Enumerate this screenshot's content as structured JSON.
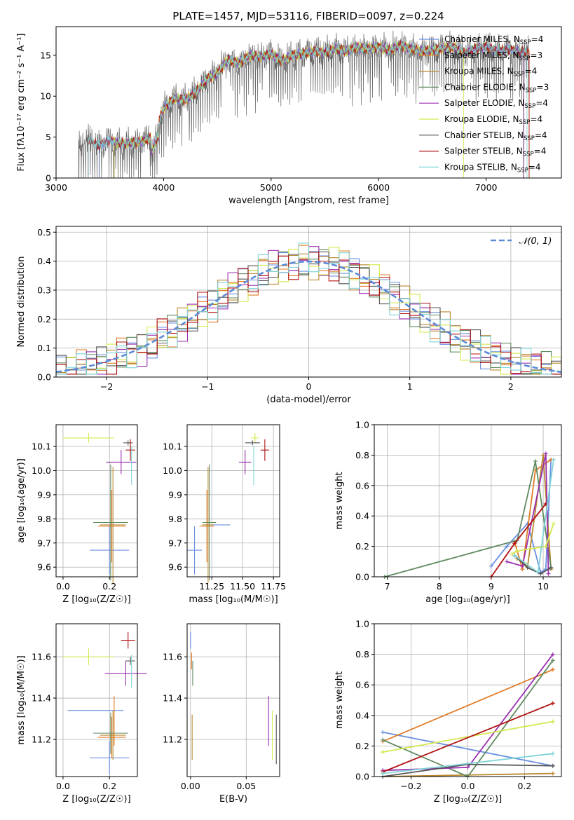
{
  "title": "PLATE=1457, MJD=53116, FIBERID=0097, z=0.224",
  "models": [
    {
      "name": "Chabrier MILES, N",
      "sub": "SSP",
      "n": "=4",
      "color": "#6a8fe0"
    },
    {
      "name": "Salpeter MILES, N",
      "sub": "SSP",
      "n": "=3",
      "color": "#e07b27"
    },
    {
      "name": "Kroupa MILES, N",
      "sub": "SSP",
      "n": "=4",
      "color": "#b8882f"
    },
    {
      "name": "Chabrier ELODIE, N",
      "sub": "SSP",
      "n": "=3",
      "color": "#5f8a5f"
    },
    {
      "name": "Salpeter ELODIE, N",
      "sub": "SSP",
      "n": "=4",
      "color": "#9b30b0"
    },
    {
      "name": "Kroupa ELODIE, N",
      "sub": "SSP",
      "n": "=4",
      "color": "#d4e94f"
    },
    {
      "name": "Chabrier STELIB, N",
      "sub": "SSP",
      "n": "=4",
      "color": "#555555"
    },
    {
      "name": "Salpeter STELIB, N",
      "sub": "SSP",
      "n": "=4",
      "color": "#b01010"
    },
    {
      "name": "Kroupa STELIB, N",
      "sub": "SSP",
      "n": "=4",
      "color": "#7fd3d8"
    }
  ],
  "chart_data": [
    {
      "type": "line",
      "id": "spectrum",
      "xlabel": "wavelength [Angstrom, rest frame]",
      "ylabel": "Flux [fλ10⁻¹⁷ erg cm⁻² s⁻¹ A⁻¹]",
      "xlim": [
        3000,
        7700
      ],
      "ylim": [
        0,
        18.5
      ],
      "xticks": [
        "3000",
        "4000",
        "5000",
        "6000",
        "7000"
      ],
      "yticks": [
        "0",
        "5",
        "10",
        "15"
      ],
      "data_x": [
        3200,
        3300,
        3400,
        3500,
        3600,
        3700,
        3800,
        3900,
        4000,
        4100,
        4200,
        4300,
        4400,
        4500,
        4600,
        4700,
        4800,
        4900,
        5000,
        5100,
        5200,
        5300,
        5400,
        5500,
        5600,
        5700,
        5800,
        5900,
        6000,
        6100,
        6200,
        6300,
        6400,
        6500,
        6600,
        6700,
        6800,
        6900,
        7000,
        7100,
        7200,
        7300,
        7400
      ],
      "data_y": [
        3.5,
        4.8,
        4.0,
        4.6,
        4.2,
        4.3,
        4.5,
        5.0,
        8.5,
        9.8,
        9.5,
        10.5,
        12.0,
        12.8,
        14.5,
        14.0,
        15.0,
        14.8,
        15.2,
        14.3,
        15.0,
        15.2,
        15.5,
        15.3,
        15.8,
        15.5,
        16.0,
        15.8,
        16.0,
        15.6,
        16.2,
        15.8,
        15.5,
        15.6,
        15.9,
        16.0,
        15.2,
        15.8,
        16.1,
        15.5,
        15.7,
        15.4,
        15.5
      ],
      "legend": "top-right"
    },
    {
      "type": "bar",
      "id": "residual-histogram",
      "xlabel": "(data-model)/error",
      "ylabel": "Normed distribution",
      "xlim": [
        -2.5,
        2.5
      ],
      "ylim": [
        0,
        0.52
      ],
      "xticks": [
        "−2",
        "−1",
        "0",
        "1",
        "2"
      ],
      "yticks": [
        "0.0",
        "0.1",
        "0.2",
        "0.3",
        "0.4",
        "0.5"
      ],
      "legend_label": "𝒩(0, 1)",
      "legend": "top-right"
    },
    {
      "type": "scatter",
      "id": "age-vs-z",
      "xlabel": "Z [log₁₀(Z/Z☉)]",
      "ylabel": "age  [log₁₀(age/yr)]",
      "xlim": [
        -0.03,
        0.32
      ],
      "ylim": [
        9.56,
        10.19
      ],
      "xticks": [
        "0.0",
        "0.2"
      ],
      "yticks": [
        "9.6",
        "9.7",
        "9.8",
        "9.9",
        "10.0",
        "10.1"
      ],
      "points": [
        {
          "x": 0.2,
          "y": 9.67,
          "xe": 0.085,
          "ye": 0.1
        },
        {
          "x": 0.21,
          "y": 9.77,
          "xe": 0.06,
          "ye": 0.15
        },
        {
          "x": 0.215,
          "y": 9.775,
          "xe": 0.055,
          "ye": 0.24
        },
        {
          "x": 0.205,
          "y": 9.785,
          "xe": 0.075,
          "ye": 0.24
        },
        {
          "x": 0.25,
          "y": 10.035,
          "xe": 0.065,
          "ye": 0.05
        },
        {
          "x": 0.11,
          "y": 10.135,
          "xe": 0.11,
          "ye": 0.02
        },
        {
          "x": 0.28,
          "y": 10.115,
          "xe": 0.02,
          "ye": 0.01
        },
        {
          "x": 0.29,
          "y": 10.085,
          "xe": 0.02,
          "ye": 0.045
        },
        {
          "x": 0.295,
          "y": 10.02,
          "xe": 0.0,
          "ye": 0.08
        }
      ]
    },
    {
      "type": "scatter",
      "id": "age-vs-mass",
      "xlabel": "mass [log₁₀(M/M☉)]",
      "ylabel": "",
      "xlim": [
        11.05,
        11.8
      ],
      "ylim": [
        9.56,
        10.19
      ],
      "xticks": [
        "11.25",
        "11.50",
        "11.75"
      ],
      "yticks": [
        "9.6",
        "9.7",
        "9.8",
        "9.9",
        "10.0",
        "10.1"
      ],
      "points": [
        {
          "x": 11.11,
          "y": 9.67,
          "xe": 0.06,
          "ye": 0.1
        },
        {
          "x": 11.21,
          "y": 9.77,
          "xe": 0.06,
          "ye": 0.15
        },
        {
          "x": 11.22,
          "y": 9.775,
          "xe": 0.05,
          "ye": 0.24
        },
        {
          "x": 11.23,
          "y": 9.785,
          "xe": 0.055,
          "ye": 0.24
        },
        {
          "x": 11.52,
          "y": 10.035,
          "xe": 0.05,
          "ye": 0.05
        },
        {
          "x": 11.6,
          "y": 10.135,
          "xe": 0.03,
          "ye": 0.02
        },
        {
          "x": 11.58,
          "y": 10.115,
          "xe": 0.06,
          "ye": 0.01
        },
        {
          "x": 11.68,
          "y": 10.085,
          "xe": 0.035,
          "ye": 0.045
        },
        {
          "x": 11.59,
          "y": 10.02,
          "xe": 0.0,
          "ye": 0.08
        },
        {
          "x": 11.33,
          "y": 9.775,
          "xe": 0.07,
          "ye": 0.0
        }
      ]
    },
    {
      "type": "line",
      "id": "mass-weight-vs-age",
      "xlabel": "age  [log₁₀(age/yr)]",
      "ylabel": "mass weight",
      "xlim": [
        6.75,
        10.35
      ],
      "ylim": [
        0,
        1.0
      ],
      "xticks": [
        "7",
        "8",
        "9",
        "10"
      ],
      "yticks": [
        "0.0",
        "0.2",
        "0.4",
        "0.6",
        "0.8",
        "1.0"
      ],
      "series": [
        {
          "x": [
            9.0,
            9.3,
            9.7,
            9.95,
            10.05,
            10.15
          ],
          "y": [
            0.07,
            0.2,
            0.35,
            0.03,
            0.05,
            0.77
          ]
        },
        {
          "x": [
            9.45,
            9.6,
            9.85,
            10.15
          ],
          "y": [
            0.23,
            0.05,
            0.7,
            0.77
          ]
        },
        {
          "x": [
            9.5,
            9.7,
            10.0,
            10.15
          ],
          "y": [
            0.12,
            0.07,
            0.8,
            0.05
          ]
        },
        {
          "x": [
            6.95,
            9.5,
            9.85,
            10.15
          ],
          "y": [
            0.0,
            0.24,
            0.76,
            0.06
          ]
        },
        {
          "x": [
            9.3,
            9.6,
            10.05,
            10.1
          ],
          "y": [
            0.1,
            0.07,
            0.81,
            0.02
          ]
        },
        {
          "x": [
            9.4,
            9.5,
            10.05,
            10.2
          ],
          "y": [
            0.15,
            0.17,
            0.2,
            0.35
          ]
        },
        {
          "x": [
            9.45,
            9.7,
            9.95,
            10.15
          ],
          "y": [
            0.14,
            0.06,
            0.02,
            0.06
          ]
        },
        {
          "x": [
            9.0,
            9.45,
            10.05
          ],
          "y": [
            0.0,
            0.22,
            0.48
          ]
        },
        {
          "x": [
            9.45,
            9.9,
            10.2
          ],
          "y": [
            0.14,
            0.03,
            0.77
          ]
        }
      ]
    },
    {
      "type": "scatter",
      "id": "mass-vs-z",
      "xlabel": "Z [log₁₀(Z/Z☉)]",
      "ylabel": "mass [log₁₀(M/M☉)]",
      "xlim": [
        -0.03,
        0.32
      ],
      "ylim": [
        11.02,
        11.76
      ],
      "xticks": [
        "0.0",
        "0.2"
      ],
      "yticks": [
        "11.2",
        "11.4",
        "11.6"
      ],
      "points": [
        {
          "x": 0.2,
          "y": 11.11,
          "xe": 0.085,
          "ye": 0.08
        },
        {
          "x": 0.21,
          "y": 11.21,
          "xe": 0.06,
          "ye": 0.1
        },
        {
          "x": 0.215,
          "y": 11.22,
          "xe": 0.055,
          "ye": 0.12
        },
        {
          "x": 0.205,
          "y": 11.23,
          "xe": 0.075,
          "ye": 0.1
        },
        {
          "x": 0.27,
          "y": 11.52,
          "xe": 0.09,
          "ye": 0.06
        },
        {
          "x": 0.11,
          "y": 11.6,
          "xe": 0.11,
          "ye": 0.04
        },
        {
          "x": 0.29,
          "y": 11.58,
          "xe": 0.02,
          "ye": 0.02
        },
        {
          "x": 0.28,
          "y": 11.68,
          "xe": 0.03,
          "ye": 0.04
        },
        {
          "x": 0.295,
          "y": 11.53,
          "xe": 0.0,
          "ye": 0.08
        },
        {
          "x": 0.14,
          "y": 11.34,
          "xe": 0.12,
          "ye": 0.0
        },
        {
          "x": 0.22,
          "y": 11.29,
          "xe": 0.0,
          "ye": 0.12
        }
      ]
    },
    {
      "type": "scatter",
      "id": "mass-vs-ebv",
      "xlabel": "E(B-V)",
      "ylabel": "",
      "xlim": [
        -0.003,
        0.08
      ],
      "ylim": [
        11.02,
        11.76
      ],
      "xticks": [
        "0.00",
        "0.05"
      ],
      "yticks": [
        "11.2",
        "11.4",
        "11.6"
      ],
      "points": [
        {
          "x": 0.0,
          "y": 11.68,
          "xe": 0.0,
          "ye": 0.04
        },
        {
          "x": 0.001,
          "y": 11.58,
          "xe": 0.0,
          "ye": 0.04
        },
        {
          "x": 0.0015,
          "y": 11.21,
          "xe": 0.0,
          "ye": 0.11
        },
        {
          "x": 0.002,
          "y": 11.52,
          "xe": 0.0,
          "ye": 0.06
        },
        {
          "x": 0.07,
          "y": 11.29,
          "xe": 0.0,
          "ye": 0.12
        },
        {
          "x": 0.0735,
          "y": 11.22,
          "xe": 0.0,
          "ye": 0.12
        },
        {
          "x": 0.077,
          "y": 11.2,
          "xe": 0.0,
          "ye": 0.12
        }
      ]
    },
    {
      "type": "line",
      "id": "mass-weight-vs-z",
      "xlabel": "Z [log₁₀(Z/Z☉)]",
      "ylabel": "mass weight",
      "xlim": [
        -0.33,
        0.33
      ],
      "ylim": [
        0,
        1.0
      ],
      "xticks": [
        "−0.2",
        "0.0",
        "0.2"
      ],
      "yticks": [
        "0.0",
        "0.2",
        "0.4",
        "0.6",
        "0.8",
        "1.0"
      ],
      "series": [
        {
          "x": [
            -0.3,
            0.3
          ],
          "y": [
            0.29,
            0.07
          ]
        },
        {
          "x": [
            -0.3,
            0.3
          ],
          "y": [
            0.23,
            0.7
          ]
        },
        {
          "x": [
            -0.3,
            0.3
          ],
          "y": [
            0.0,
            0.02
          ]
        },
        {
          "x": [
            -0.3,
            0.0,
            0.3
          ],
          "y": [
            0.24,
            0.0,
            0.76
          ]
        },
        {
          "x": [
            -0.3,
            0.0,
            0.3
          ],
          "y": [
            0.04,
            0.06,
            0.8
          ]
        },
        {
          "x": [
            -0.3,
            0.3
          ],
          "y": [
            0.16,
            0.36
          ]
        },
        {
          "x": [
            -0.3,
            0.0,
            0.3
          ],
          "y": [
            0.0,
            0.08,
            0.07
          ]
        },
        {
          "x": [
            -0.3,
            0.3
          ],
          "y": [
            0.03,
            0.48
          ]
        },
        {
          "x": [
            -0.3,
            0.3
          ],
          "y": [
            0.02,
            0.15
          ]
        }
      ]
    }
  ]
}
